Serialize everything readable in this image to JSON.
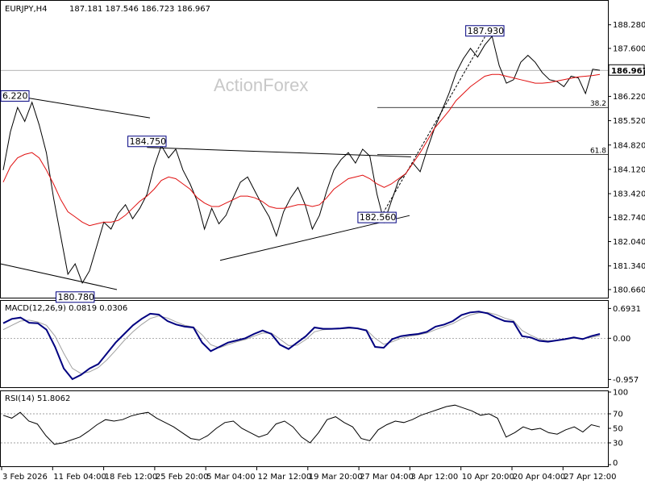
{
  "header": {
    "symbol_tf": "EURJPY,H4",
    "ohlc": "187.181 187.546 186.723 186.967"
  },
  "watermark": "ActionForex",
  "colors": {
    "price": "#000000",
    "ema": "#e01010",
    "macd_line": "#000080",
    "macd_signal": "#a0a0a0",
    "current_price_box": "#ffffff",
    "annotation_border": "#000080"
  },
  "chart_data": [
    {
      "type": "line",
      "panel": "price",
      "title": "EURJPY,H4",
      "ylim": [
        180.45,
        188.9
      ],
      "y_ticks": [
        "188.280",
        "187.600",
        "186.900",
        "186.220",
        "185.520",
        "184.820",
        "184.120",
        "183.420",
        "182.740",
        "182.040",
        "181.340",
        "180.660"
      ],
      "x_ticks": [
        "3 Feb 2026",
        "11 Feb 04:00",
        "18 Feb 12:00",
        "25 Feb 20:00",
        "5 Mar 04:00",
        "12 Mar 12:00",
        "19 Mar 20:00",
        "27 Mar 04:00",
        "3 Apr 12:00",
        "10 Apr 20:00",
        "20 Apr 04:00",
        "27 Apr 12:00"
      ],
      "current_price": "186.967",
      "series": [
        {
          "kind": "price",
          "values": [
            184.1,
            185.2,
            185.9,
            185.5,
            186.05,
            185.4,
            184.6,
            183.3,
            182.2,
            181.1,
            181.4,
            180.85,
            181.2,
            181.9,
            182.6,
            182.4,
            182.85,
            183.1,
            182.7,
            183.0,
            183.4,
            184.2,
            184.8,
            184.45,
            184.7,
            184.1,
            183.7,
            183.2,
            182.4,
            183.0,
            182.55,
            182.8,
            183.3,
            183.75,
            183.9,
            183.5,
            183.1,
            182.75,
            182.2,
            182.9,
            183.3,
            183.6,
            183.1,
            182.4,
            182.8,
            183.5,
            184.1,
            184.4,
            184.6,
            184.3,
            184.7,
            184.5,
            183.4,
            182.6,
            183.2,
            183.8,
            184.0,
            184.3,
            184.05,
            184.7,
            185.3,
            185.8,
            186.3,
            186.9,
            187.3,
            187.6,
            187.35,
            187.7,
            187.95,
            187.1,
            186.6,
            186.7,
            187.2,
            187.4,
            187.2,
            186.9,
            186.7,
            186.65,
            186.5,
            186.8,
            186.75,
            186.3,
            187.0,
            186.97
          ]
        },
        {
          "kind": "ema",
          "values": [
            183.75,
            184.2,
            184.45,
            184.55,
            184.6,
            184.45,
            184.1,
            183.7,
            183.25,
            182.9,
            182.75,
            182.6,
            182.5,
            182.55,
            182.6,
            182.6,
            182.65,
            182.8,
            183.0,
            183.2,
            183.35,
            183.55,
            183.8,
            183.9,
            183.85,
            183.7,
            183.55,
            183.3,
            183.15,
            183.05,
            183.05,
            183.15,
            183.25,
            183.35,
            183.35,
            183.3,
            183.2,
            183.05,
            183.0,
            183.0,
            183.05,
            183.1,
            183.1,
            183.05,
            183.1,
            183.3,
            183.55,
            183.7,
            183.85,
            183.9,
            183.95,
            183.85,
            183.7,
            183.6,
            183.7,
            183.85,
            184.0,
            184.3,
            184.6,
            184.95,
            185.3,
            185.55,
            185.8,
            186.1,
            186.3,
            186.5,
            186.65,
            186.8,
            186.85,
            186.85,
            186.8,
            186.75,
            186.7,
            186.65,
            186.6,
            186.6,
            186.62,
            186.66,
            186.7,
            186.74,
            186.78,
            186.8,
            186.82,
            186.85
          ]
        }
      ],
      "annotations": [
        {
          "label": "187.930",
          "price": 187.93,
          "bar": 67
        },
        {
          "label": "6.220",
          "price": 186.22,
          "bar": 0
        },
        {
          "label": "184.750",
          "price": 184.75,
          "bar": 20
        },
        {
          "label": "182.560",
          "price": 182.56,
          "bar": 52
        },
        {
          "label": "180.780",
          "price": 180.78,
          "bar": 10
        }
      ],
      "fib_levels": [
        {
          "label": "38.2",
          "price": 185.9
        },
        {
          "label": "61.8",
          "price": 184.55
        }
      ]
    },
    {
      "type": "line",
      "panel": "macd",
      "title": "MACD(12,26,9) 0.0819 0.0306",
      "ylim": [
        -1.1,
        0.85
      ],
      "y_ticks": [
        "0.6931",
        "0.00",
        "-0.957"
      ],
      "series": [
        {
          "kind": "macd",
          "values": [
            0.35,
            0.45,
            0.48,
            0.36,
            0.35,
            0.2,
            -0.2,
            -0.7,
            -0.95,
            -0.85,
            -0.7,
            -0.6,
            -0.35,
            -0.1,
            0.1,
            0.3,
            0.45,
            0.57,
            0.55,
            0.4,
            0.32,
            0.27,
            0.25,
            -0.1,
            -0.3,
            -0.2,
            -0.1,
            -0.05,
            0.0,
            0.1,
            0.18,
            0.1,
            -0.15,
            -0.25,
            -0.1,
            0.05,
            0.25,
            0.22,
            0.22,
            0.23,
            0.25,
            0.23,
            0.18,
            -0.2,
            -0.22,
            -0.02,
            0.05,
            0.08,
            0.1,
            0.15,
            0.27,
            0.32,
            0.4,
            0.54,
            0.6,
            0.62,
            0.58,
            0.48,
            0.4,
            0.38,
            0.05,
            0.02,
            -0.06,
            -0.08,
            -0.05,
            -0.02,
            0.02,
            -0.02,
            0.05,
            0.1
          ]
        },
        {
          "kind": "signal",
          "values": [
            0.2,
            0.3,
            0.4,
            0.42,
            0.38,
            0.3,
            0.05,
            -0.35,
            -0.7,
            -0.82,
            -0.78,
            -0.68,
            -0.5,
            -0.28,
            -0.05,
            0.15,
            0.32,
            0.46,
            0.52,
            0.47,
            0.38,
            0.3,
            0.26,
            0.08,
            -0.15,
            -0.22,
            -0.15,
            -0.08,
            -0.03,
            0.05,
            0.12,
            0.12,
            -0.02,
            -0.17,
            -0.16,
            -0.03,
            0.15,
            0.2,
            0.21,
            0.22,
            0.23,
            0.23,
            0.2,
            0.0,
            -0.14,
            -0.08,
            0.0,
            0.05,
            0.08,
            0.12,
            0.2,
            0.27,
            0.34,
            0.45,
            0.54,
            0.59,
            0.6,
            0.55,
            0.47,
            0.41,
            0.18,
            0.07,
            -0.02,
            -0.06,
            -0.05,
            -0.03,
            0.0,
            -0.01,
            0.02,
            0.06
          ]
        }
      ]
    },
    {
      "type": "line",
      "panel": "rsi",
      "title": "RSI(14) 51.8062",
      "ylim": [
        0,
        100
      ],
      "y_ticks": [
        "100",
        "70",
        "50",
        "30",
        "0"
      ],
      "levels": [
        70,
        30
      ],
      "series": [
        {
          "kind": "rsi",
          "values": [
            68,
            64,
            72,
            60,
            56,
            40,
            28,
            30,
            34,
            38,
            46,
            55,
            62,
            60,
            62,
            67,
            70,
            72,
            64,
            58,
            52,
            44,
            36,
            34,
            40,
            50,
            58,
            60,
            50,
            44,
            38,
            42,
            56,
            60,
            52,
            38,
            30,
            44,
            62,
            66,
            58,
            52,
            36,
            33,
            48,
            55,
            60,
            58,
            62,
            68,
            72,
            76,
            80,
            82,
            78,
            74,
            68,
            70,
            64,
            38,
            44,
            52,
            48,
            50,
            44,
            42,
            48,
            52,
            45,
            55,
            52
          ]
        }
      ]
    }
  ]
}
